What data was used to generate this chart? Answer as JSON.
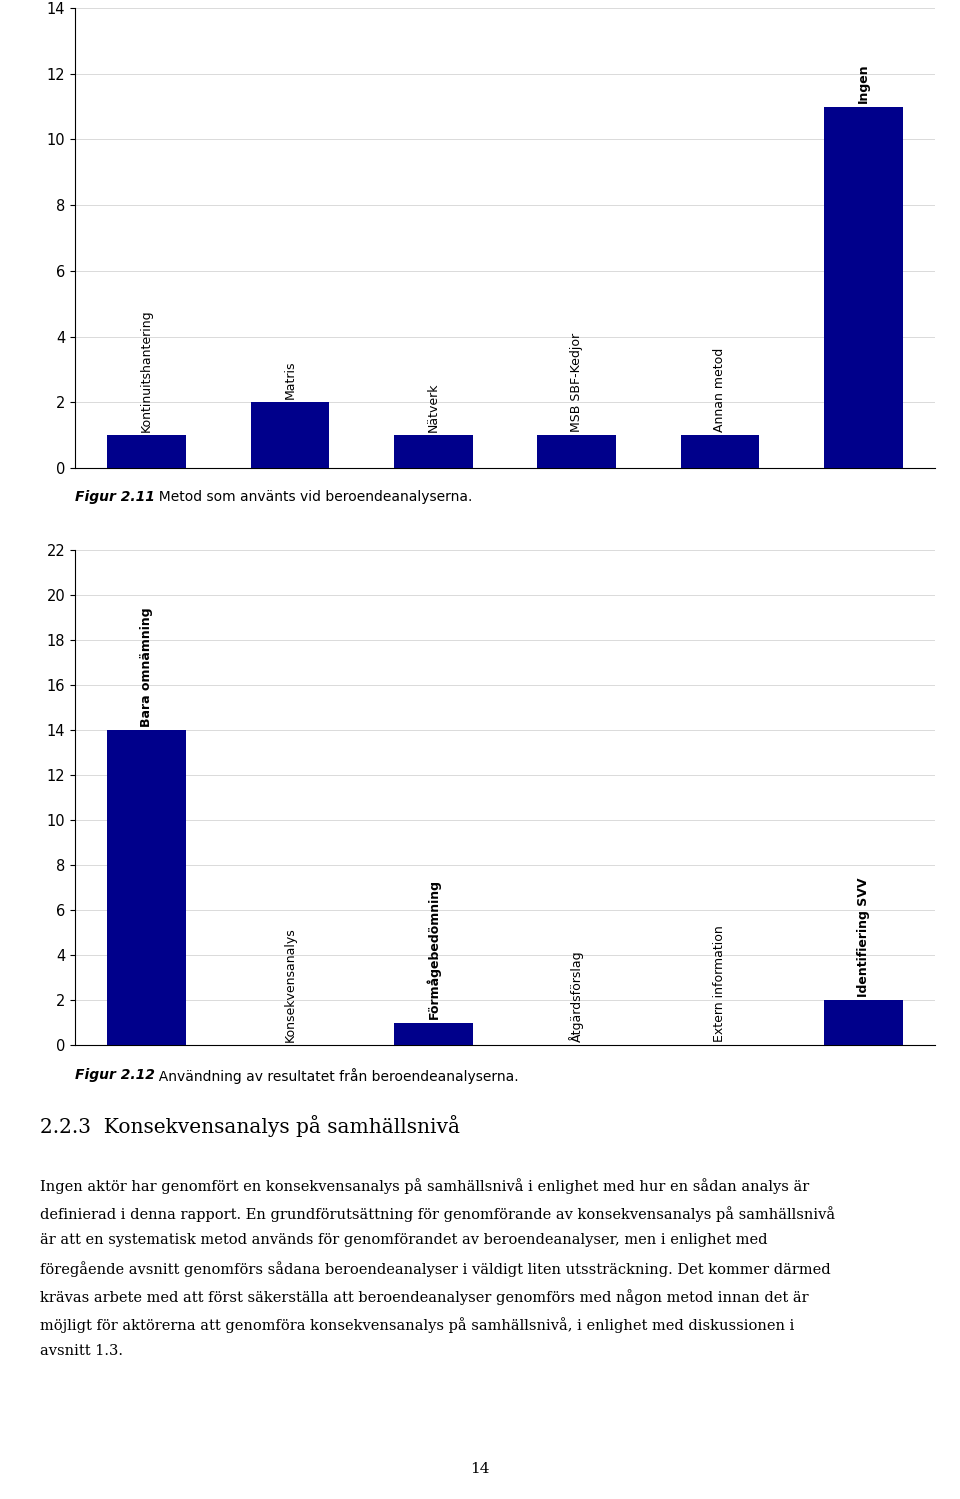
{
  "chart1": {
    "categories": [
      "Kontinuitshantering",
      "Matris",
      "Nätverk",
      "MSB SBF-Kedjor",
      "Annan metod",
      "Ingen"
    ],
    "values": [
      1,
      2,
      1,
      1,
      1,
      11
    ],
    "ylim": [
      0,
      14
    ],
    "yticks": [
      0,
      2,
      4,
      6,
      8,
      10,
      12,
      14
    ],
    "bar_color": "#00008B",
    "bar_labels_bold": [
      "Ingen"
    ],
    "caption_bold": "Figur 2.11",
    "caption_rest": "  Metod som använts vid beroendeanalyserna."
  },
  "chart2": {
    "categories": [
      "Bara omnämning",
      "Konsekvensanalys",
      "Förmågebedömning",
      "Åtgärdsförslag",
      "Extern information",
      "Identifiering SVV"
    ],
    "values": [
      14,
      0,
      1,
      0,
      0,
      2
    ],
    "ylim": [
      0,
      22
    ],
    "yticks": [
      0,
      2,
      4,
      6,
      8,
      10,
      12,
      14,
      16,
      18,
      20,
      22
    ],
    "bar_color": "#00008B",
    "bar_labels_bold": [
      "Bara omnämning",
      "Förmågebedömning",
      "Identifiering SVV"
    ],
    "caption_bold": "Figur 2.12",
    "caption_rest": "  Användning av resultatet från beroendeanalyserna."
  },
  "section_title": "2.2.3  Konsekvensanalys på samhällsnivå",
  "paragraph_lines": [
    "Ingen aktör har genomfört en konsekvensanalys på samhällsnivå i enlighet med hur en sådan analys är",
    "definierad i denna rapport. En grundförutsättning för genomförande av konsekvensanalys på samhällsnivå",
    "är att en systematisk metod används för genomförandet av beroendeanalyser, men i enlighet med",
    "föregående avsnitt genomförs sådana beroendeanalyser i väldigt liten utssträckning. Det kommer därmed",
    "krävas arbete med att först säkerställa att beroendeanalyser genomförs med någon metod innan det är",
    "möjligt för aktörerna att genomföra konsekvensanalys på samhällsnivå, i enlighet med diskussionen i",
    "avsnitt 1.3."
  ],
  "page_number": "14",
  "bg_color": "#FFFFFF",
  "text_color": "#000000"
}
